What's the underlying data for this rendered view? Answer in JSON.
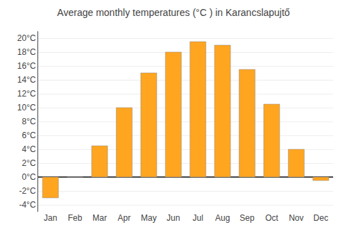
{
  "chart_data": {
    "type": "bar",
    "title": "Average monthly temperatures (°C ) in Karancslapujtő",
    "categories": [
      "Jan",
      "Feb",
      "Mar",
      "Apr",
      "May",
      "Jun",
      "Jul",
      "Aug",
      "Sep",
      "Oct",
      "Nov",
      "Dec"
    ],
    "values": [
      -3.0,
      0.0,
      4.5,
      10.0,
      15.0,
      18.0,
      19.5,
      19.0,
      15.5,
      10.5,
      4.0,
      -0.5
    ],
    "color": "#FFA520",
    "ylim": [
      -5,
      21
    ],
    "yticks": [
      {
        "value": -4,
        "label": "-4°C"
      },
      {
        "value": -2,
        "label": "-2°C"
      },
      {
        "value": 0,
        "label": "0°C"
      },
      {
        "value": 2,
        "label": "2°C"
      },
      {
        "value": 4,
        "label": "4°C"
      },
      {
        "value": 6,
        "label": "6°C"
      },
      {
        "value": 8,
        "label": "8°C"
      },
      {
        "value": 10,
        "label": "10°C"
      },
      {
        "value": 12,
        "label": "12°C"
      },
      {
        "value": 14,
        "label": "14°C"
      },
      {
        "value": 16,
        "label": "16°C"
      },
      {
        "value": 18,
        "label": "18°C"
      },
      {
        "value": 20,
        "label": "20°C"
      }
    ],
    "grid": true
  }
}
